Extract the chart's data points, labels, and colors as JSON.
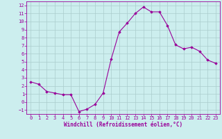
{
  "x": [
    0,
    1,
    2,
    3,
    4,
    5,
    6,
    7,
    8,
    9,
    10,
    11,
    12,
    13,
    14,
    15,
    16,
    17,
    18,
    19,
    20,
    21,
    22,
    23
  ],
  "y": [
    2.5,
    2.2,
    1.3,
    1.1,
    0.9,
    0.9,
    -1.2,
    -0.9,
    -0.3,
    1.1,
    5.3,
    8.7,
    9.8,
    11.0,
    11.8,
    11.2,
    11.2,
    9.5,
    7.1,
    6.6,
    6.8,
    6.3,
    5.2,
    4.8
  ],
  "line_color": "#990099",
  "marker": "D",
  "marker_size": 1.8,
  "bg_color": "#cceeee",
  "grid_color": "#aacccc",
  "xlabel": "Windchill (Refroidissement éolien,°C)",
  "xlabel_color": "#990099",
  "tick_color": "#990099",
  "xlim": [
    -0.5,
    23.5
  ],
  "ylim": [
    -1.5,
    12.5
  ],
  "yticks": [
    -1,
    0,
    1,
    2,
    3,
    4,
    5,
    6,
    7,
    8,
    9,
    10,
    11,
    12
  ],
  "xticks": [
    0,
    1,
    2,
    3,
    4,
    5,
    6,
    7,
    8,
    9,
    10,
    11,
    12,
    13,
    14,
    15,
    16,
    17,
    18,
    19,
    20,
    21,
    22,
    23
  ],
  "border_color": "#990099",
  "tick_fontsize": 5.0,
  "xlabel_fontsize": 5.5,
  "linewidth": 0.8
}
